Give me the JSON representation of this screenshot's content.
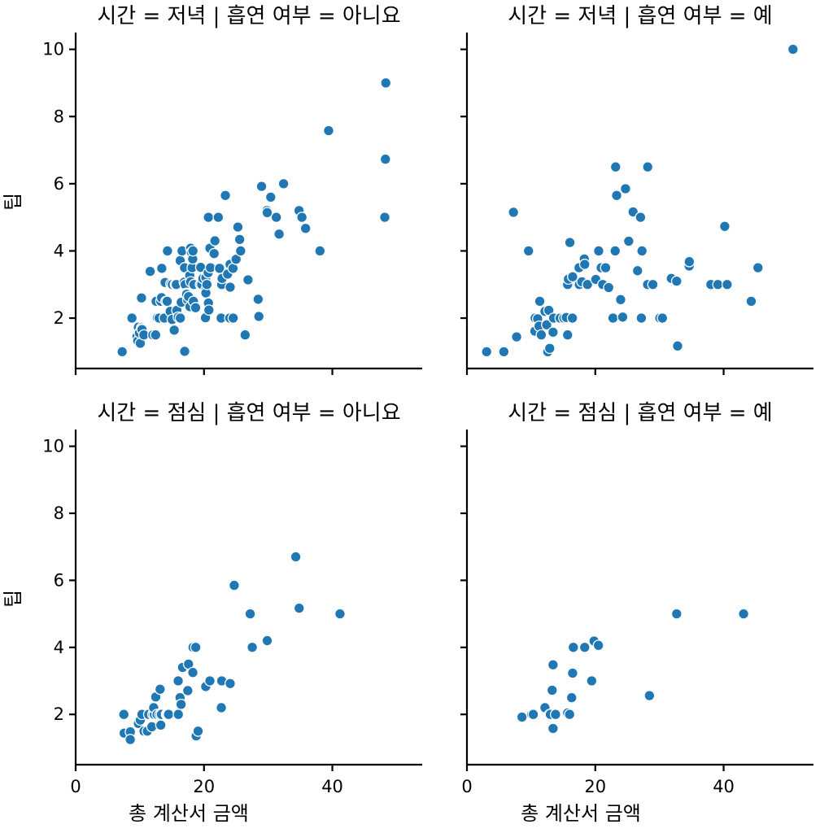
{
  "chart_data": {
    "type": "scatter",
    "xlabel": "총 계산서 금액",
    "ylabel": "팁",
    "xlim": [
      0,
      54
    ],
    "ylim": [
      0.5,
      10.5
    ],
    "xticks": [
      0,
      20,
      40
    ],
    "yticks": [
      2,
      4,
      6,
      8,
      10
    ],
    "grid": false,
    "facets": [
      {
        "title": "시간 = 저녁 | 흡연 여부 = 아니요",
        "points": [
          [
            7.25,
            1.0
          ],
          [
            8.77,
            2.0
          ],
          [
            9.55,
            1.45
          ],
          [
            9.68,
            1.32
          ],
          [
            9.78,
            1.73
          ],
          [
            9.94,
            1.56
          ],
          [
            10.07,
            1.25
          ],
          [
            10.27,
            1.71
          ],
          [
            10.33,
            1.67
          ],
          [
            10.34,
            1.66
          ],
          [
            10.26,
            2.6
          ],
          [
            10.63,
            1.5
          ],
          [
            11.61,
            3.39
          ],
          [
            12.03,
            1.5
          ],
          [
            12.46,
            1.5
          ],
          [
            12.54,
            2.5
          ],
          [
            12.69,
            2.0
          ],
          [
            12.74,
            2.01
          ],
          [
            13.0,
            2.0
          ],
          [
            13.27,
            2.5
          ],
          [
            13.42,
            3.48
          ],
          [
            13.39,
            2.61
          ],
          [
            13.81,
            2.0
          ],
          [
            13.94,
            3.06
          ],
          [
            14.07,
            2.5
          ],
          [
            14.26,
            2.5
          ],
          [
            14.31,
            4.0
          ],
          [
            14.73,
            2.2
          ],
          [
            14.83,
            3.02
          ],
          [
            15.04,
            1.96
          ],
          [
            15.06,
            3.0
          ],
          [
            15.36,
            1.64
          ],
          [
            15.53,
            3.0
          ],
          [
            15.69,
            3.0
          ],
          [
            15.77,
            2.23
          ],
          [
            15.98,
            2.03
          ],
          [
            16.27,
            2.5
          ],
          [
            16.29,
            3.71
          ],
          [
            16.31,
            2.0
          ],
          [
            16.4,
            2.5
          ],
          [
            16.45,
            2.47
          ],
          [
            16.58,
            4.0
          ],
          [
            16.93,
            3.07
          ],
          [
            16.97,
            3.5
          ],
          [
            16.99,
            1.01
          ],
          [
            17.07,
            3.0
          ],
          [
            17.26,
            2.74
          ],
          [
            17.29,
            2.71
          ],
          [
            17.46,
            2.54
          ],
          [
            17.59,
            2.64
          ],
          [
            17.78,
            3.27
          ],
          [
            17.81,
            2.34
          ],
          [
            17.92,
            4.08
          ],
          [
            17.92,
            3.08
          ],
          [
            18.04,
            3.96
          ],
          [
            18.15,
            3.5
          ],
          [
            18.24,
            3.76
          ],
          [
            18.28,
            4.0
          ],
          [
            18.35,
            2.5
          ],
          [
            18.43,
            3.0
          ],
          [
            18.69,
            2.31
          ],
          [
            19.44,
            3.0
          ],
          [
            19.49,
            3.51
          ],
          [
            19.65,
            3.0
          ],
          [
            19.82,
            3.18
          ],
          [
            20.23,
            2.01
          ],
          [
            20.27,
            2.83
          ],
          [
            20.29,
            2.75
          ],
          [
            20.29,
            3.21
          ],
          [
            20.45,
            3.0
          ],
          [
            20.65,
            3.35
          ],
          [
            20.69,
            2.45
          ],
          [
            20.69,
            5.0
          ],
          [
            20.76,
            2.24
          ],
          [
            20.92,
            4.08
          ],
          [
            21.01,
            3.5
          ],
          [
            21.58,
            3.92
          ],
          [
            21.7,
            4.3
          ],
          [
            22.23,
            5.0
          ],
          [
            22.42,
            3.48
          ],
          [
            22.67,
            2.0
          ],
          [
            22.76,
            3.0
          ],
          [
            22.82,
            3.18
          ],
          [
            23.33,
            5.65
          ],
          [
            23.68,
            3.31
          ],
          [
            24.01,
            2.0
          ],
          [
            24.06,
            3.6
          ],
          [
            24.08,
            2.92
          ],
          [
            24.52,
            3.48
          ],
          [
            24.55,
            2.0
          ],
          [
            25.0,
            3.75
          ],
          [
            25.28,
            4.71
          ],
          [
            25.56,
            4.34
          ],
          [
            25.71,
            4.0
          ],
          [
            26.41,
            1.5
          ],
          [
            26.86,
            3.14
          ],
          [
            28.44,
            2.56
          ],
          [
            28.55,
            2.05
          ],
          [
            28.97,
            5.92
          ],
          [
            29.8,
            5.2
          ],
          [
            29.85,
            5.14
          ],
          [
            30.4,
            5.6
          ],
          [
            31.27,
            5.0
          ],
          [
            31.71,
            4.5
          ],
          [
            32.4,
            6.0
          ],
          [
            34.81,
            5.2
          ],
          [
            35.26,
            5.0
          ],
          [
            35.83,
            4.67
          ],
          [
            38.07,
            4.0
          ],
          [
            39.42,
            7.58
          ],
          [
            48.27,
            6.73
          ],
          [
            48.17,
            5.0
          ],
          [
            48.33,
            9.0
          ]
        ]
      },
      {
        "title": "시간 = 저녁 | 흡연 여부 = 예",
        "points": [
          [
            3.07,
            1.0
          ],
          [
            5.75,
            1.0
          ],
          [
            7.25,
            5.15
          ],
          [
            7.74,
            1.44
          ],
          [
            9.6,
            4.0
          ],
          [
            10.59,
            1.61
          ],
          [
            10.63,
            2.0
          ],
          [
            11.02,
            1.98
          ],
          [
            11.24,
            1.76
          ],
          [
            11.59,
            1.5
          ],
          [
            11.35,
            2.5
          ],
          [
            12.16,
            2.2
          ],
          [
            12.43,
            1.8
          ],
          [
            12.6,
            1.0
          ],
          [
            12.76,
            2.23
          ],
          [
            12.9,
            1.1
          ],
          [
            13.42,
            1.58
          ],
          [
            13.51,
            2.0
          ],
          [
            14.52,
            2.0
          ],
          [
            15.1,
            2.0
          ],
          [
            15.48,
            2.02
          ],
          [
            15.69,
            3.0
          ],
          [
            15.69,
            1.5
          ],
          [
            15.81,
            3.16
          ],
          [
            16.04,
            4.25
          ],
          [
            16.44,
            2.0
          ],
          [
            16.47,
            3.23
          ],
          [
            17.47,
            3.5
          ],
          [
            17.51,
            3.0
          ],
          [
            17.92,
            3.08
          ],
          [
            18.29,
            3.76
          ],
          [
            18.35,
            3.6
          ],
          [
            18.78,
            3.0
          ],
          [
            20.08,
            3.15
          ],
          [
            20.53,
            4.0
          ],
          [
            20.92,
            3.5
          ],
          [
            21.16,
            3.0
          ],
          [
            21.61,
            3.5
          ],
          [
            22.09,
            2.91
          ],
          [
            22.76,
            2.0
          ],
          [
            23.1,
            4.0
          ],
          [
            23.17,
            6.5
          ],
          [
            23.33,
            5.65
          ],
          [
            23.95,
            2.55
          ],
          [
            24.27,
            2.03
          ],
          [
            24.71,
            5.85
          ],
          [
            25.21,
            4.29
          ],
          [
            25.89,
            5.16
          ],
          [
            26.59,
            3.41
          ],
          [
            27.05,
            5.0
          ],
          [
            27.18,
            2.0
          ],
          [
            27.28,
            4.0
          ],
          [
            28.15,
            3.0
          ],
          [
            28.17,
            6.5
          ],
          [
            28.97,
            3.0
          ],
          [
            30.06,
            2.0
          ],
          [
            30.46,
            2.0
          ],
          [
            31.85,
            3.18
          ],
          [
            32.68,
            3.1
          ],
          [
            32.83,
            1.17
          ],
          [
            34.63,
            3.55
          ],
          [
            34.65,
            3.68
          ],
          [
            38.01,
            3.0
          ],
          [
            39.1,
            3.0
          ],
          [
            40.17,
            4.73
          ],
          [
            40.55,
            3.0
          ],
          [
            44.3,
            2.5
          ],
          [
            45.35,
            3.5
          ],
          [
            50.81,
            10.0
          ]
        ]
      },
      {
        "title": "시간 = 점심 | 흡연 여부 = 아니요",
        "points": [
          [
            7.51,
            2.0
          ],
          [
            7.56,
            1.44
          ],
          [
            8.52,
            1.48
          ],
          [
            8.51,
            1.25
          ],
          [
            9.78,
            1.73
          ],
          [
            10.07,
            1.83
          ],
          [
            10.33,
            2.0
          ],
          [
            10.65,
            1.5
          ],
          [
            11.17,
            1.5
          ],
          [
            11.87,
            1.63
          ],
          [
            11.38,
            2.0
          ],
          [
            12.03,
            2.0
          ],
          [
            12.26,
            2.0
          ],
          [
            12.16,
            2.2
          ],
          [
            12.48,
            2.52
          ],
          [
            12.69,
            2.0
          ],
          [
            13.13,
            2.0
          ],
          [
            13.16,
            2.75
          ],
          [
            13.27,
            1.68
          ],
          [
            13.37,
            2.0
          ],
          [
            14.15,
            2.0
          ],
          [
            14.31,
            2.0
          ],
          [
            14.48,
            2.0
          ],
          [
            16.0,
            2.0
          ],
          [
            16.27,
            2.5
          ],
          [
            16.43,
            2.3
          ],
          [
            16.66,
            3.4
          ],
          [
            15.98,
            3.0
          ],
          [
            17.59,
            3.5
          ],
          [
            17.47,
            2.71
          ],
          [
            18.26,
            3.25
          ],
          [
            18.29,
            4.0
          ],
          [
            18.71,
            4.0
          ],
          [
            18.78,
            1.36
          ],
          [
            19.08,
            1.5
          ],
          [
            20.27,
            2.83
          ],
          [
            20.92,
            3.0
          ],
          [
            22.76,
            3.0
          ],
          [
            22.7,
            2.2
          ],
          [
            24.08,
            2.92
          ],
          [
            24.71,
            5.85
          ],
          [
            27.2,
            5.0
          ],
          [
            27.52,
            4.0
          ],
          [
            29.85,
            4.2
          ],
          [
            34.3,
            6.7
          ],
          [
            34.83,
            5.17
          ],
          [
            41.19,
            5.0
          ]
        ]
      },
      {
        "title": "시간 = 점심 | 흡연 여부 = 예",
        "points": [
          [
            8.58,
            1.92
          ],
          [
            10.09,
            2.0
          ],
          [
            10.34,
            2.0
          ],
          [
            12.16,
            2.2
          ],
          [
            12.9,
            2.0
          ],
          [
            13.0,
            2.0
          ],
          [
            13.28,
            2.72
          ],
          [
            13.42,
            1.58
          ],
          [
            13.42,
            3.48
          ],
          [
            13.81,
            2.0
          ],
          [
            15.69,
            2.04
          ],
          [
            16.0,
            2.0
          ],
          [
            16.32,
            2.5
          ],
          [
            16.47,
            3.23
          ],
          [
            16.58,
            4.0
          ],
          [
            18.35,
            4.0
          ],
          [
            19.81,
            4.19
          ],
          [
            19.44,
            3.0
          ],
          [
            20.49,
            4.06
          ],
          [
            28.44,
            2.56
          ],
          [
            32.68,
            5.0
          ],
          [
            43.11,
            5.0
          ]
        ]
      }
    ]
  }
}
